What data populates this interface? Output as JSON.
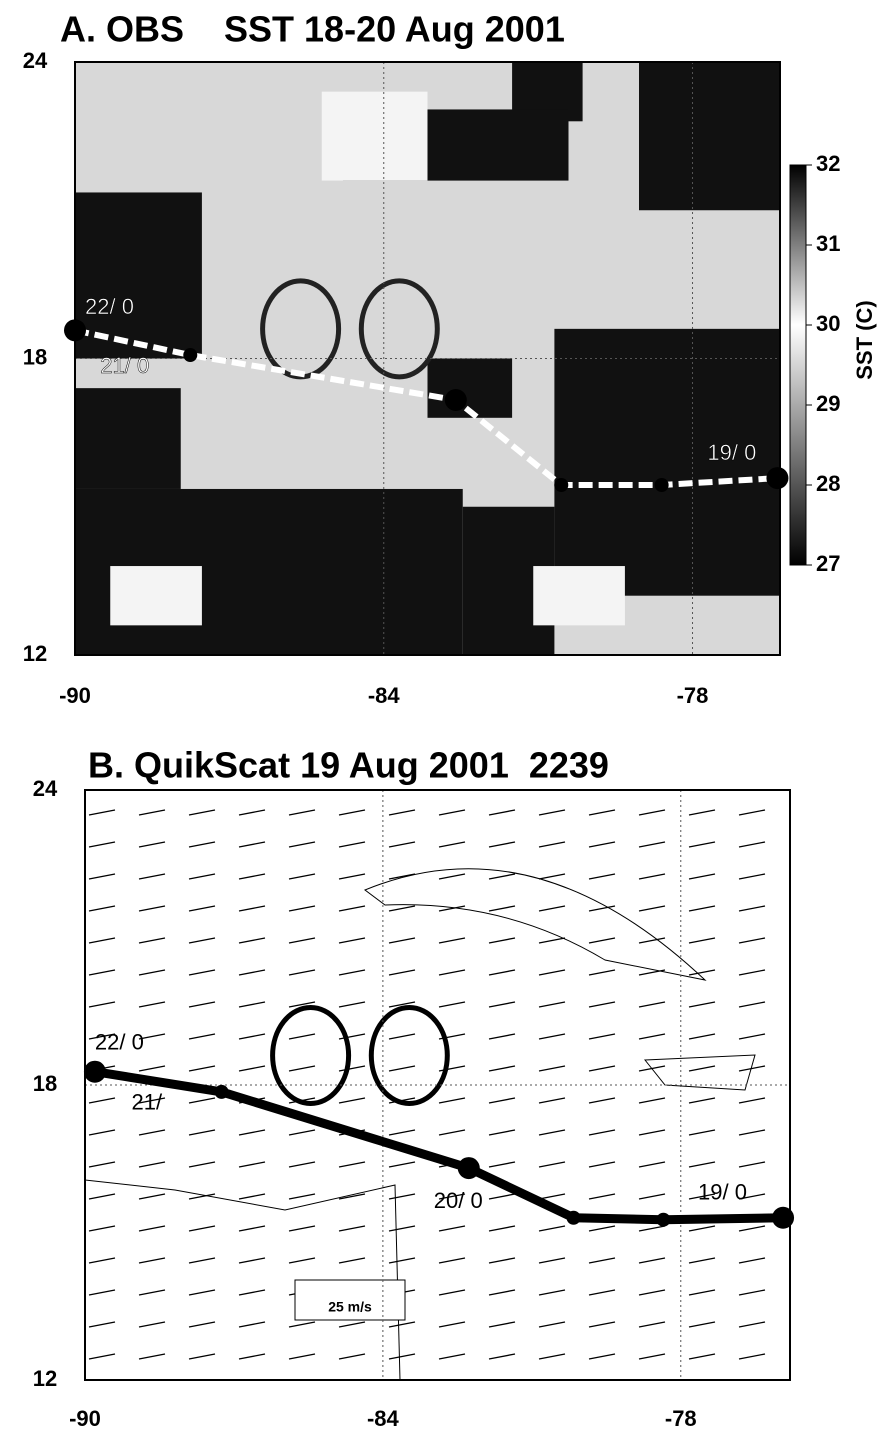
{
  "chart_data": [
    {
      "type": "map",
      "title": "A. OBS    SST 18-20 Aug 2001",
      "xlim": [
        -90,
        -76.3
      ],
      "ylim": [
        12,
        24
      ],
      "xticks": [
        -90,
        -84,
        -78
      ],
      "yticks": [
        12,
        18,
        24
      ],
      "track": {
        "x": [
          -90,
          -87.76,
          -82.6,
          -80.55,
          -78.6,
          -76.35
        ],
        "y": [
          18.57,
          18.07,
          17.16,
          15.44,
          15.44,
          15.58
        ]
      },
      "track_labels": [
        "22/ 0",
        "21/ 0",
        "19/ 0"
      ],
      "colorbar": {
        "label": "SST (C)",
        "lim": [
          27,
          32
        ],
        "ticks": [
          27,
          28,
          29,
          30,
          31,
          32
        ]
      }
    },
    {
      "type": "map",
      "title": "B. QuikScat 19 Aug 2001  2239",
      "xlim": [
        -90,
        -75.8
      ],
      "ylim": [
        12,
        24
      ],
      "xticks": [
        -90,
        -84,
        -78
      ],
      "yticks": [
        12,
        18,
        24
      ],
      "track": {
        "x": [
          -89.8,
          -87.25,
          -82.27,
          -80.16,
          -78.35,
          -75.94
        ],
        "y": [
          18.27,
          17.86,
          16.31,
          15.3,
          15.26,
          15.3
        ]
      },
      "track_labels": [
        "22/ 0",
        "21/",
        "20/ 0",
        "19/ 0"
      ],
      "scale_label": "25 m/s"
    }
  ]
}
